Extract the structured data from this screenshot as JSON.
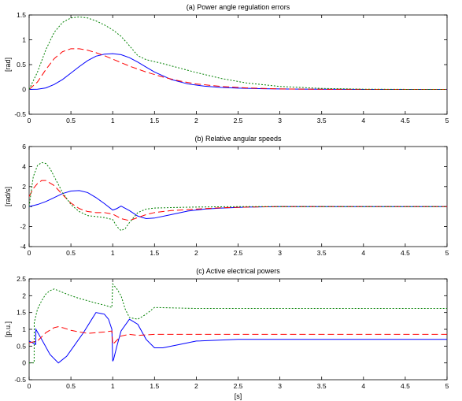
{
  "chart_data": [
    {
      "type": "line",
      "title": "(a) Power angle regulation errors",
      "xlabel": "",
      "ylabel": "[rad]",
      "xlim": [
        0,
        5
      ],
      "ylim": [
        -0.5,
        1.5
      ],
      "xticks": [
        0,
        0.5,
        1,
        1.5,
        2,
        2.5,
        3,
        3.5,
        4,
        4.5,
        5
      ],
      "yticks": [
        -0.5,
        0,
        0.5,
        1,
        1.5
      ],
      "xtick_labels": [
        "0",
        "0.5",
        "1",
        "1.5",
        "2",
        "2.5",
        "3",
        "3.5",
        "4",
        "4.5",
        "5"
      ],
      "ytick_labels": [
        "-0.5",
        "0",
        "0.5",
        "1",
        "1.5"
      ],
      "grid": false,
      "series": [
        {
          "color": "#0000ff",
          "style": "solid",
          "x": [
            0,
            0.1,
            0.2,
            0.3,
            0.4,
            0.5,
            0.6,
            0.7,
            0.8,
            0.9,
            1.0,
            1.1,
            1.2,
            1.3,
            1.4,
            1.5,
            1.7,
            1.9,
            2.1,
            2.3,
            2.5,
            2.8,
            3.1,
            3.5,
            4.0,
            4.5,
            5.0
          ],
          "y": [
            0,
            0.005,
            0.03,
            0.1,
            0.2,
            0.33,
            0.46,
            0.58,
            0.67,
            0.71,
            0.72,
            0.7,
            0.64,
            0.55,
            0.45,
            0.35,
            0.2,
            0.11,
            0.065,
            0.04,
            0.025,
            0.013,
            0.007,
            0.003,
            0.001,
            0,
            0
          ]
        },
        {
          "color": "#ff0000",
          "style": "dashed",
          "x": [
            0,
            0.1,
            0.2,
            0.3,
            0.4,
            0.5,
            0.6,
            0.7,
            0.8,
            0.9,
            1.0,
            1.1,
            1.2,
            1.4,
            1.6,
            1.8,
            2.0,
            2.3,
            2.6,
            3.0,
            3.5,
            4.0,
            4.5,
            5.0
          ],
          "y": [
            0,
            0.15,
            0.4,
            0.62,
            0.76,
            0.82,
            0.82,
            0.79,
            0.74,
            0.68,
            0.61,
            0.54,
            0.47,
            0.35,
            0.25,
            0.17,
            0.11,
            0.06,
            0.03,
            0.01,
            0.003,
            0.001,
            0,
            0
          ]
        },
        {
          "color": "#008000",
          "style": "dotted",
          "x": [
            0,
            0.1,
            0.2,
            0.3,
            0.4,
            0.5,
            0.6,
            0.7,
            0.8,
            0.9,
            1.0,
            1.1,
            1.2,
            1.3,
            1.4,
            1.6,
            1.8,
            2.0,
            2.3,
            2.6,
            3.0,
            3.5,
            4.0,
            4.5,
            5.0
          ],
          "y": [
            0,
            0.35,
            0.8,
            1.15,
            1.35,
            1.44,
            1.46,
            1.44,
            1.38,
            1.3,
            1.2,
            1.07,
            0.88,
            0.68,
            0.6,
            0.52,
            0.43,
            0.34,
            0.22,
            0.13,
            0.06,
            0.02,
            0.005,
            0.001,
            0
          ]
        }
      ]
    },
    {
      "type": "line",
      "title": "(b) Relative angular speeds",
      "xlabel": "",
      "ylabel": "[rad/s]",
      "xlim": [
        0,
        5
      ],
      "ylim": [
        -4,
        6
      ],
      "xticks": [
        0,
        0.5,
        1,
        1.5,
        2,
        2.5,
        3,
        3.5,
        4,
        4.5,
        5
      ],
      "yticks": [
        -4,
        -2,
        0,
        2,
        4,
        6
      ],
      "xtick_labels": [
        "0",
        "0.5",
        "1",
        "1.5",
        "2",
        "2.5",
        "3",
        "3.5",
        "4",
        "4.5",
        "5"
      ],
      "ytick_labels": [
        "-4",
        "-2",
        "0",
        "2",
        "4",
        "6"
      ],
      "grid": false,
      "series": [
        {
          "color": "#0000ff",
          "style": "solid",
          "x": [
            0,
            0.1,
            0.2,
            0.3,
            0.4,
            0.5,
            0.6,
            0.7,
            0.8,
            0.9,
            1.0,
            1.05,
            1.1,
            1.2,
            1.3,
            1.4,
            1.5,
            1.7,
            1.9,
            2.1,
            2.3,
            2.6,
            3.0,
            3.5,
            4.0,
            5.0
          ],
          "y": [
            0,
            0.2,
            0.5,
            0.9,
            1.3,
            1.55,
            1.6,
            1.4,
            0.9,
            0.3,
            -0.35,
            -0.2,
            0.05,
            -0.4,
            -0.95,
            -1.2,
            -1.15,
            -0.8,
            -0.45,
            -0.25,
            -0.15,
            -0.05,
            0,
            0,
            0,
            0
          ]
        },
        {
          "color": "#ff0000",
          "style": "dashed",
          "x": [
            0,
            0.05,
            0.1,
            0.15,
            0.2,
            0.3,
            0.4,
            0.5,
            0.6,
            0.7,
            0.8,
            0.9,
            1.0,
            1.1,
            1.2,
            1.3,
            1.4,
            1.5,
            1.7,
            2.0,
            2.3,
            2.6,
            3.0,
            3.5,
            4.0,
            5.0
          ],
          "y": [
            1.0,
            1.8,
            2.3,
            2.6,
            2.6,
            2.1,
            1.2,
            0.35,
            -0.2,
            -0.5,
            -0.6,
            -0.6,
            -0.75,
            -1.2,
            -1.4,
            -1.1,
            -0.8,
            -0.6,
            -0.4,
            -0.25,
            -0.12,
            -0.05,
            0,
            0,
            0,
            0
          ]
        },
        {
          "color": "#008000",
          "style": "dotted",
          "x": [
            0,
            0.05,
            0.1,
            0.15,
            0.2,
            0.25,
            0.3,
            0.4,
            0.5,
            0.6,
            0.7,
            0.8,
            0.9,
            1.0,
            1.05,
            1.1,
            1.15,
            1.2,
            1.3,
            1.4,
            1.5,
            1.7,
            2.0,
            2.3,
            2.6,
            3.0,
            3.5,
            4.0,
            5.0
          ],
          "y": [
            0,
            3.0,
            4.1,
            4.4,
            4.3,
            3.8,
            3.0,
            1.4,
            0.2,
            -0.5,
            -0.9,
            -1.0,
            -1.1,
            -1.3,
            -2.0,
            -2.4,
            -2.2,
            -1.6,
            -0.6,
            -0.25,
            -0.15,
            -0.1,
            -0.05,
            -0.02,
            0,
            0,
            0,
            0,
            0
          ]
        }
      ]
    },
    {
      "type": "line",
      "title": "(c) Active electrical powers",
      "xlabel": "[s]",
      "ylabel": "[p.u.]",
      "xlim": [
        0,
        5
      ],
      "ylim": [
        -0.5,
        2.5
      ],
      "xticks": [
        0,
        0.5,
        1,
        1.5,
        2,
        2.5,
        3,
        3.5,
        4,
        4.5,
        5
      ],
      "yticks": [
        -0.5,
        0,
        0.5,
        1,
        1.5,
        2,
        2.5
      ],
      "xtick_labels": [
        "0",
        "0.5",
        "1",
        "1.5",
        "2",
        "2.5",
        "3",
        "3.5",
        "4",
        "4.5",
        "5"
      ],
      "ytick_labels": [
        "-0.5",
        "0",
        "0.5",
        "1",
        "1.5",
        "2",
        "2.5"
      ],
      "grid": false,
      "series": [
        {
          "color": "#0000ff",
          "style": "solid",
          "x": [
            0,
            0.08,
            0.081,
            0.15,
            0.25,
            0.35,
            0.45,
            0.55,
            0.65,
            0.75,
            0.8,
            0.9,
            0.95,
            0.99,
            1.0,
            1.01,
            1.05,
            1.1,
            1.2,
            1.3,
            1.4,
            1.5,
            1.6,
            1.8,
            2.0,
            2.5,
            3.0,
            4.0,
            5.0
          ],
          "y": [
            0.65,
            0.55,
            1.0,
            0.7,
            0.25,
            0.0,
            0.2,
            0.55,
            0.9,
            1.3,
            1.5,
            1.45,
            1.3,
            1.0,
            0.05,
            0.1,
            0.5,
            0.95,
            1.3,
            1.15,
            0.7,
            0.45,
            0.45,
            0.55,
            0.65,
            0.7,
            0.7,
            0.7,
            0.7
          ]
        },
        {
          "color": "#ff0000",
          "style": "dashed",
          "x": [
            0,
            0.1,
            0.2,
            0.3,
            0.35,
            0.4,
            0.5,
            0.6,
            0.7,
            0.8,
            0.9,
            0.99,
            1.0,
            1.1,
            1.2,
            1.3,
            1.5,
            2.0,
            2.5,
            3.0,
            4.0,
            5.0
          ],
          "y": [
            0.6,
            0.65,
            0.9,
            1.05,
            1.08,
            1.05,
            0.97,
            0.92,
            0.88,
            0.9,
            0.92,
            0.95,
            0.55,
            0.8,
            0.85,
            0.82,
            0.85,
            0.85,
            0.85,
            0.85,
            0.85,
            0.85
          ]
        },
        {
          "color": "#008000",
          "style": "dotted",
          "x": [
            0,
            0.06,
            0.061,
            0.1,
            0.15,
            0.2,
            0.25,
            0.3,
            0.35,
            0.4,
            0.5,
            0.6,
            0.7,
            0.8,
            0.9,
            0.99,
            1.0,
            1.05,
            1.1,
            1.15,
            1.2,
            1.3,
            1.4,
            1.5,
            2.0,
            3.0,
            4.0,
            5.0
          ],
          "y": [
            0,
            0,
            1.2,
            1.6,
            1.85,
            2.05,
            2.15,
            2.2,
            2.15,
            2.1,
            2.0,
            1.92,
            1.85,
            1.78,
            1.72,
            1.65,
            2.35,
            2.2,
            2.0,
            1.6,
            1.35,
            1.3,
            1.45,
            1.65,
            1.62,
            1.62,
            1.62,
            1.62
          ]
        }
      ]
    }
  ]
}
